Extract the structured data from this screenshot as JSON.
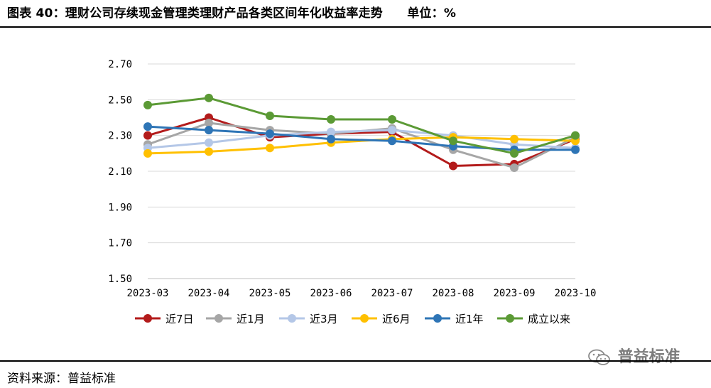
{
  "header": {
    "title": "图表 40：理财公司存续现金管理类理财产品各类区间年化收益率走势",
    "unit": "单位：%"
  },
  "footer": {
    "source": "资料来源：普益标准",
    "watermark": "普益标准"
  },
  "colors": {
    "近7日": "#b31b1b",
    "近1月": "#a6a6a6",
    "近3月": "#b4c7e7",
    "近6月": "#ffc000",
    "近1年": "#2e75b6",
    "成立以来": "#5b9a35"
  },
  "chart_data": {
    "type": "line",
    "categories": [
      "2023-03",
      "2023-04",
      "2023-05",
      "2023-06",
      "2023-07",
      "2023-08",
      "2023-09",
      "2023-10"
    ],
    "ylim": [
      1.5,
      2.7
    ],
    "yticks": [
      "2.70",
      "2.50",
      "2.30",
      "2.10",
      "1.90",
      "1.70",
      "1.50"
    ],
    "grid": true,
    "legend_position": "bottom",
    "series": [
      {
        "name": "近7日",
        "values": [
          2.3,
          2.4,
          2.29,
          2.31,
          2.32,
          2.13,
          2.14,
          2.28
        ]
      },
      {
        "name": "近1月",
        "values": [
          2.25,
          2.37,
          2.33,
          2.31,
          2.34,
          2.22,
          2.12,
          2.29
        ]
      },
      {
        "name": "近3月",
        "values": [
          2.23,
          2.26,
          2.3,
          2.32,
          2.33,
          2.3,
          2.25,
          2.23
        ]
      },
      {
        "name": "近6月",
        "values": [
          2.2,
          2.21,
          2.23,
          2.26,
          2.28,
          2.29,
          2.28,
          2.27
        ]
      },
      {
        "name": "近1年",
        "values": [
          2.35,
          2.33,
          2.31,
          2.28,
          2.27,
          2.24,
          2.22,
          2.22
        ]
      },
      {
        "name": "成立以来",
        "values": [
          2.47,
          2.51,
          2.41,
          2.39,
          2.39,
          2.27,
          2.2,
          2.3
        ]
      }
    ]
  }
}
